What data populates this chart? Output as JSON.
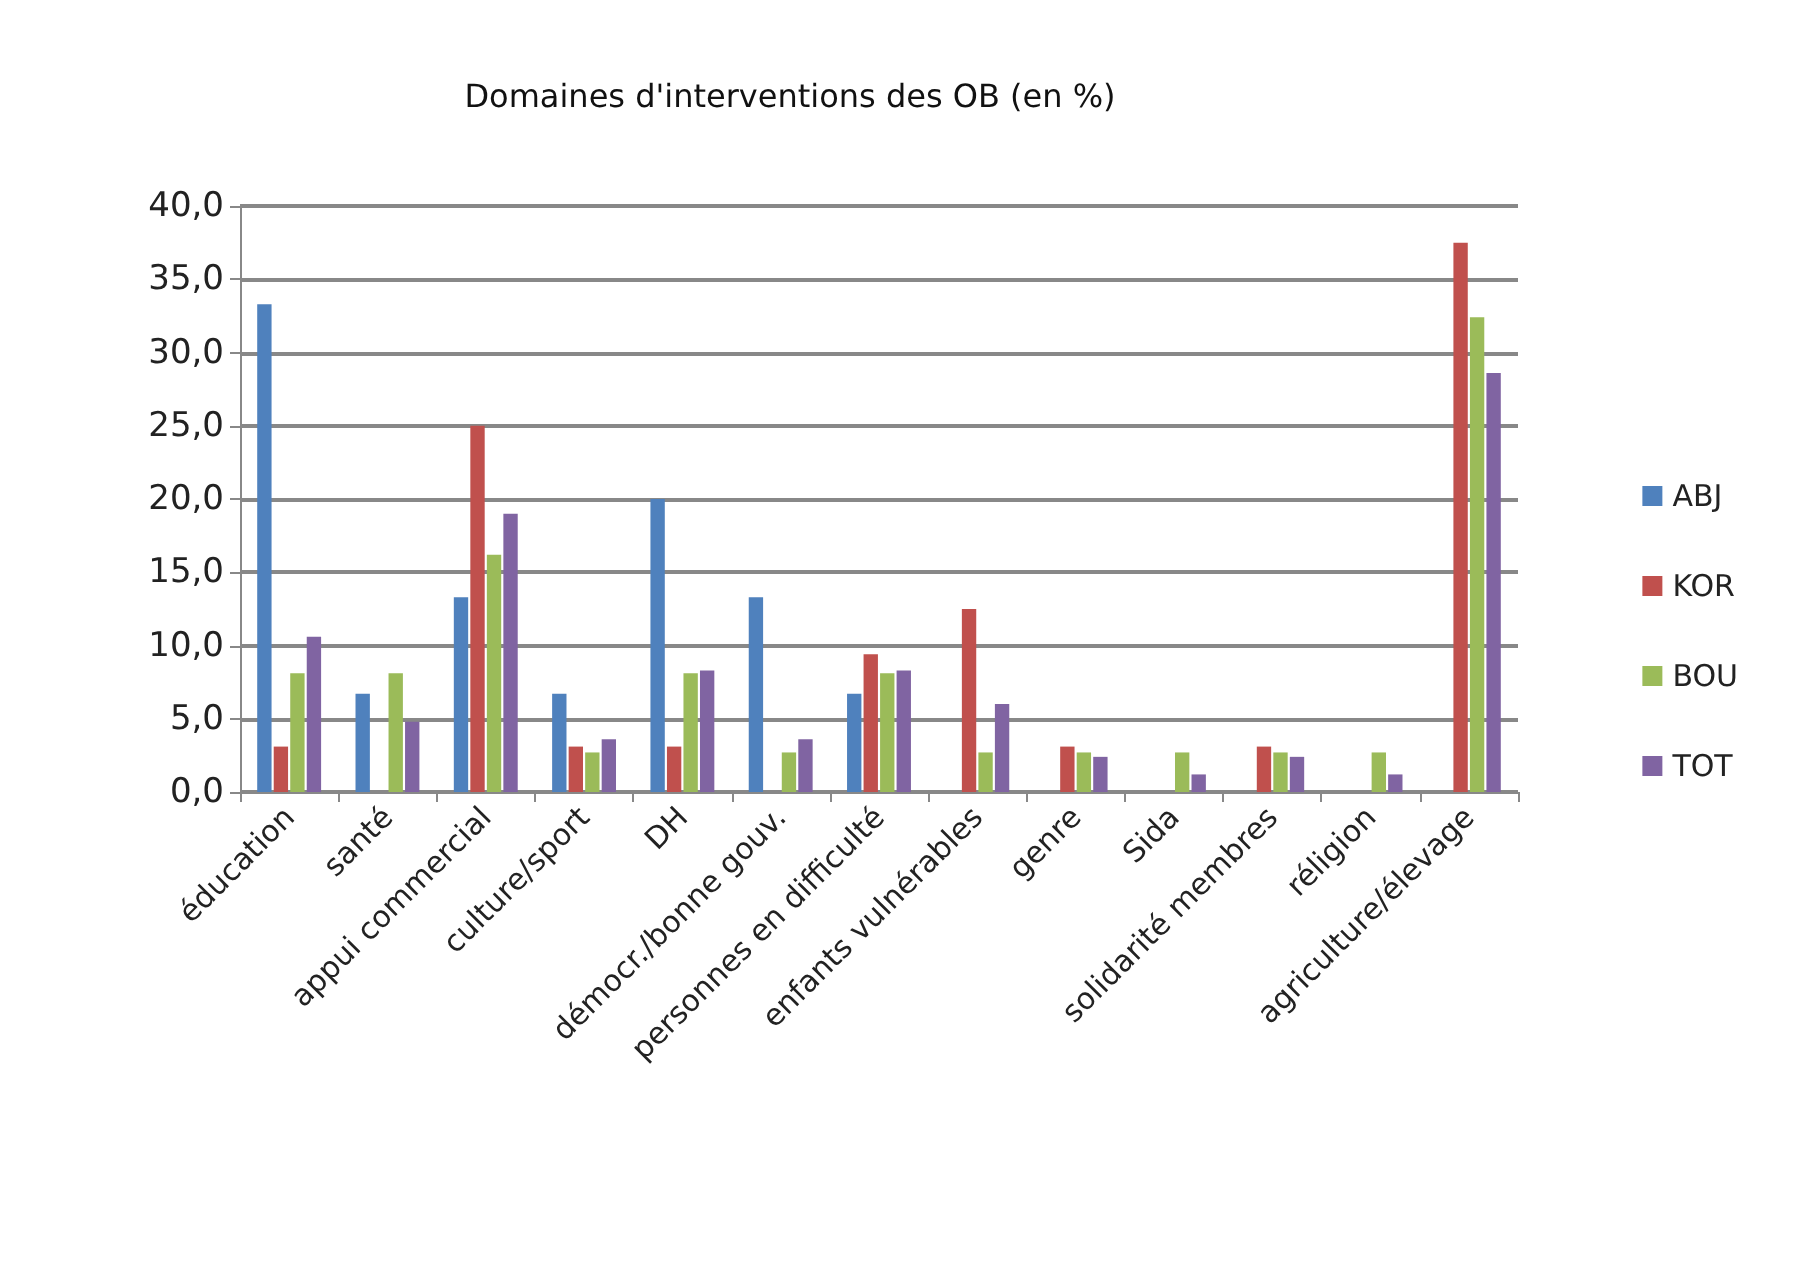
{
  "chart_data": {
    "type": "bar",
    "title": "Domaines d'interventions des OB (en %)",
    "categories": [
      "éducation",
      "santé",
      "appui commercial",
      "culture/sport",
      "DH",
      "démocr./bonne gouv.",
      "personnes en difficulté",
      "enfants vulnérables",
      "genre",
      "Sida",
      "solidarité membres",
      "réligion",
      "agriculture/élevage"
    ],
    "series": [
      {
        "name": "ABJ",
        "color": "#4f81bd",
        "values": [
          33.3,
          6.7,
          13.3,
          6.7,
          20.0,
          13.3,
          6.7,
          0,
          0,
          0,
          0,
          0,
          0
        ]
      },
      {
        "name": "KOR",
        "color": "#c0504d",
        "values": [
          3.1,
          0,
          25.0,
          3.1,
          3.1,
          0,
          9.4,
          12.5,
          3.1,
          0,
          3.1,
          0,
          37.5
        ]
      },
      {
        "name": "BOU",
        "color": "#9bbb59",
        "values": [
          8.1,
          8.1,
          16.2,
          2.7,
          8.1,
          2.7,
          8.1,
          2.7,
          2.7,
          2.7,
          2.7,
          2.7,
          32.4
        ]
      },
      {
        "name": "TOT",
        "color": "#8064a2",
        "values": [
          10.6,
          4.8,
          19.0,
          3.6,
          8.3,
          3.6,
          8.3,
          6.0,
          2.4,
          1.2,
          2.4,
          1.2,
          28.6
        ]
      }
    ],
    "ylim": [
      0,
      40
    ],
    "yticks": [
      {
        "value": 0,
        "label": "0,0"
      },
      {
        "value": 5,
        "label": "5,0"
      },
      {
        "value": 10,
        "label": "10,0"
      },
      {
        "value": 15,
        "label": "15,0"
      },
      {
        "value": 20,
        "label": "20,0"
      },
      {
        "value": 25,
        "label": "25,0"
      },
      {
        "value": 30,
        "label": "30,0"
      },
      {
        "value": 35,
        "label": "35,0"
      },
      {
        "value": 40,
        "label": "40,0"
      }
    ],
    "grid": "y",
    "legend": "right"
  }
}
